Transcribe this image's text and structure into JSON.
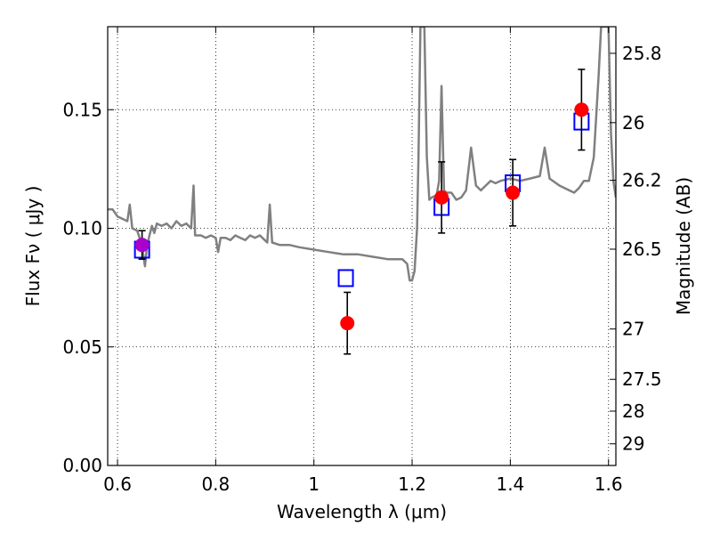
{
  "chart_data": {
    "type": "scatter",
    "xlabel": "Wavelength  λ (μm)",
    "ylabel": "Flux  Fν  ( μJy )",
    "ylabel_right": "Magnitude (AB)",
    "xlim": [
      0.58,
      1.615
    ],
    "ylim": [
      0.0,
      0.185
    ],
    "grid": true,
    "x_ticks": [
      {
        "value": 0.6,
        "label": "0.6"
      },
      {
        "value": 0.8,
        "label": "0.8"
      },
      {
        "value": 1.0,
        "label": "1"
      },
      {
        "value": 1.2,
        "label": "1.2"
      },
      {
        "value": 1.4,
        "label": "1.4"
      },
      {
        "value": 1.6,
        "label": "1.6"
      }
    ],
    "y_ticks": [
      {
        "value": 0.0,
        "label": "0.00"
      },
      {
        "value": 0.05,
        "label": "0.05"
      },
      {
        "value": 0.1,
        "label": "0.10"
      },
      {
        "value": 0.15,
        "label": "0.15"
      }
    ],
    "mag_ticks": [
      {
        "mag": 25.8,
        "label": "25.8"
      },
      {
        "mag": 26.0,
        "label": "26"
      },
      {
        "mag": 26.2,
        "label": "26.2"
      },
      {
        "mag": 26.5,
        "label": "26.5"
      },
      {
        "mag": 27.0,
        "label": "27"
      },
      {
        "mag": 27.5,
        "label": "27.5"
      },
      {
        "mag": 28.0,
        "label": "28"
      },
      {
        "mag": 29.0,
        "label": "29"
      }
    ],
    "series": [
      {
        "kind": "line",
        "color": "#808080",
        "points": [
          [
            0.58,
            0.108
          ],
          [
            0.59,
            0.108
          ],
          [
            0.6,
            0.105
          ],
          [
            0.61,
            0.104
          ],
          [
            0.62,
            0.103
          ],
          [
            0.625,
            0.11
          ],
          [
            0.63,
            0.1
          ],
          [
            0.64,
            0.099
          ],
          [
            0.645,
            0.096
          ],
          [
            0.65,
            0.093
          ],
          [
            0.653,
            0.088
          ],
          [
            0.656,
            0.084
          ],
          [
            0.66,
            0.092
          ],
          [
            0.665,
            0.097
          ],
          [
            0.67,
            0.101
          ],
          [
            0.675,
            0.098
          ],
          [
            0.68,
            0.102
          ],
          [
            0.69,
            0.101
          ],
          [
            0.7,
            0.102
          ],
          [
            0.71,
            0.1
          ],
          [
            0.72,
            0.103
          ],
          [
            0.73,
            0.101
          ],
          [
            0.74,
            0.102
          ],
          [
            0.75,
            0.1
          ],
          [
            0.755,
            0.118
          ],
          [
            0.758,
            0.097
          ],
          [
            0.77,
            0.097
          ],
          [
            0.78,
            0.096
          ],
          [
            0.79,
            0.097
          ],
          [
            0.8,
            0.096
          ],
          [
            0.805,
            0.09
          ],
          [
            0.81,
            0.096
          ],
          [
            0.82,
            0.096
          ],
          [
            0.83,
            0.095
          ],
          [
            0.84,
            0.097
          ],
          [
            0.85,
            0.096
          ],
          [
            0.86,
            0.095
          ],
          [
            0.87,
            0.097
          ],
          [
            0.88,
            0.096
          ],
          [
            0.89,
            0.097
          ],
          [
            0.9,
            0.095
          ],
          [
            0.905,
            0.094
          ],
          [
            0.91,
            0.11
          ],
          [
            0.915,
            0.094
          ],
          [
            0.93,
            0.093
          ],
          [
            0.95,
            0.093
          ],
          [
            0.97,
            0.092
          ],
          [
            1.0,
            0.091
          ],
          [
            1.03,
            0.09
          ],
          [
            1.06,
            0.089
          ],
          [
            1.09,
            0.089
          ],
          [
            1.12,
            0.088
          ],
          [
            1.15,
            0.087
          ],
          [
            1.18,
            0.087
          ],
          [
            1.19,
            0.085
          ],
          [
            1.195,
            0.078
          ],
          [
            1.2,
            0.078
          ],
          [
            1.205,
            0.082
          ],
          [
            1.21,
            0.1
          ],
          [
            1.213,
            0.13
          ],
          [
            1.217,
            0.185
          ],
          [
            1.225,
            0.185
          ],
          [
            1.23,
            0.13
          ],
          [
            1.235,
            0.112
          ],
          [
            1.24,
            0.113
          ],
          [
            1.25,
            0.114
          ],
          [
            1.255,
            0.12
          ],
          [
            1.26,
            0.16
          ],
          [
            1.265,
            0.116
          ],
          [
            1.27,
            0.115
          ],
          [
            1.28,
            0.115
          ],
          [
            1.29,
            0.112
          ],
          [
            1.3,
            0.113
          ],
          [
            1.31,
            0.116
          ],
          [
            1.32,
            0.134
          ],
          [
            1.33,
            0.118
          ],
          [
            1.34,
            0.116
          ],
          [
            1.35,
            0.118
          ],
          [
            1.36,
            0.12
          ],
          [
            1.37,
            0.119
          ],
          [
            1.38,
            0.12
          ],
          [
            1.4,
            0.121
          ],
          [
            1.42,
            0.12
          ],
          [
            1.44,
            0.121
          ],
          [
            1.46,
            0.122
          ],
          [
            1.47,
            0.134
          ],
          [
            1.48,
            0.121
          ],
          [
            1.5,
            0.118
          ],
          [
            1.52,
            0.116
          ],
          [
            1.53,
            0.115
          ],
          [
            1.54,
            0.117
          ],
          [
            1.55,
            0.12
          ],
          [
            1.56,
            0.12
          ],
          [
            1.57,
            0.13
          ],
          [
            1.58,
            0.165
          ],
          [
            1.585,
            0.185
          ],
          [
            1.6,
            0.185
          ],
          [
            1.605,
            0.14
          ],
          [
            1.61,
            0.12
          ],
          [
            1.615,
            0.113
          ]
        ]
      },
      {
        "kind": "open-square",
        "color": "#0000ff",
        "points": [
          [
            0.65,
            0.091
          ],
          [
            1.065,
            0.079
          ],
          [
            1.26,
            0.109
          ],
          [
            1.405,
            0.119
          ],
          [
            1.545,
            0.145
          ]
        ]
      },
      {
        "kind": "filled-circle",
        "color": "#ff0000",
        "points": [
          {
            "x": 1.068,
            "y": 0.06,
            "err": 0.013
          },
          {
            "x": 1.26,
            "y": 0.113,
            "err": 0.015
          },
          {
            "x": 1.405,
            "y": 0.115,
            "err": 0.014
          },
          {
            "x": 1.545,
            "y": 0.15,
            "err": 0.017
          }
        ]
      },
      {
        "kind": "filled-circle",
        "color": "#aa00cc",
        "points": [
          {
            "x": 0.65,
            "y": 0.093,
            "err": 0.006
          }
        ]
      }
    ]
  }
}
